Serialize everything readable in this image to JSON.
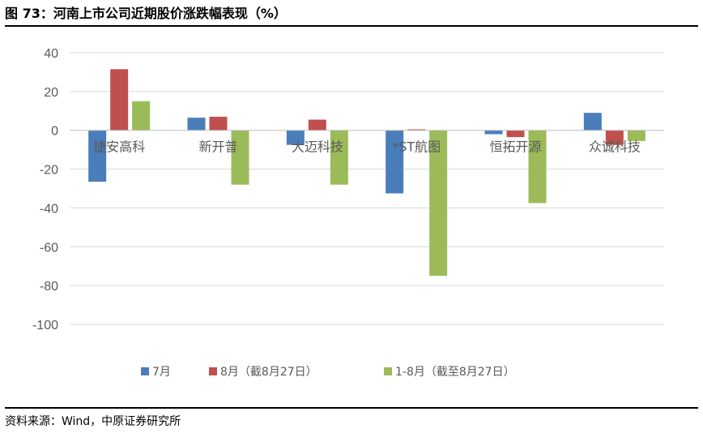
{
  "figure": {
    "title": "图 73：河南上市公司近期股价涨跌幅表现（%）",
    "source": "资料来源：Wind，中原证券研究所"
  },
  "chart_data": {
    "type": "bar",
    "title": "",
    "xlabel": "",
    "ylabel": "",
    "categories": [
      "捷安高科",
      "新开普",
      "大迈科技",
      "*ST航图",
      "恒拓开源",
      "众诚科技"
    ],
    "series": [
      {
        "name": "7月",
        "color": "#4a7ebb",
        "values": [
          -26.5,
          6.5,
          -7.5,
          -32.5,
          -2,
          9
        ]
      },
      {
        "name": "8月（截8月27日）",
        "color": "#c0504d",
        "values": [
          31.5,
          7,
          5.5,
          0.5,
          -3.5,
          -7.5
        ]
      },
      {
        "name": "1-8月（截至8月27日）",
        "color": "#9bbb59",
        "values": [
          15,
          -28,
          -28,
          -75,
          -37.5,
          -5.5
        ]
      }
    ],
    "ylim": [
      -100,
      40
    ],
    "yticks": [
      40,
      20,
      0,
      -20,
      -40,
      -60,
      -80,
      -100
    ],
    "grid": true,
    "legend": "bottom"
  }
}
